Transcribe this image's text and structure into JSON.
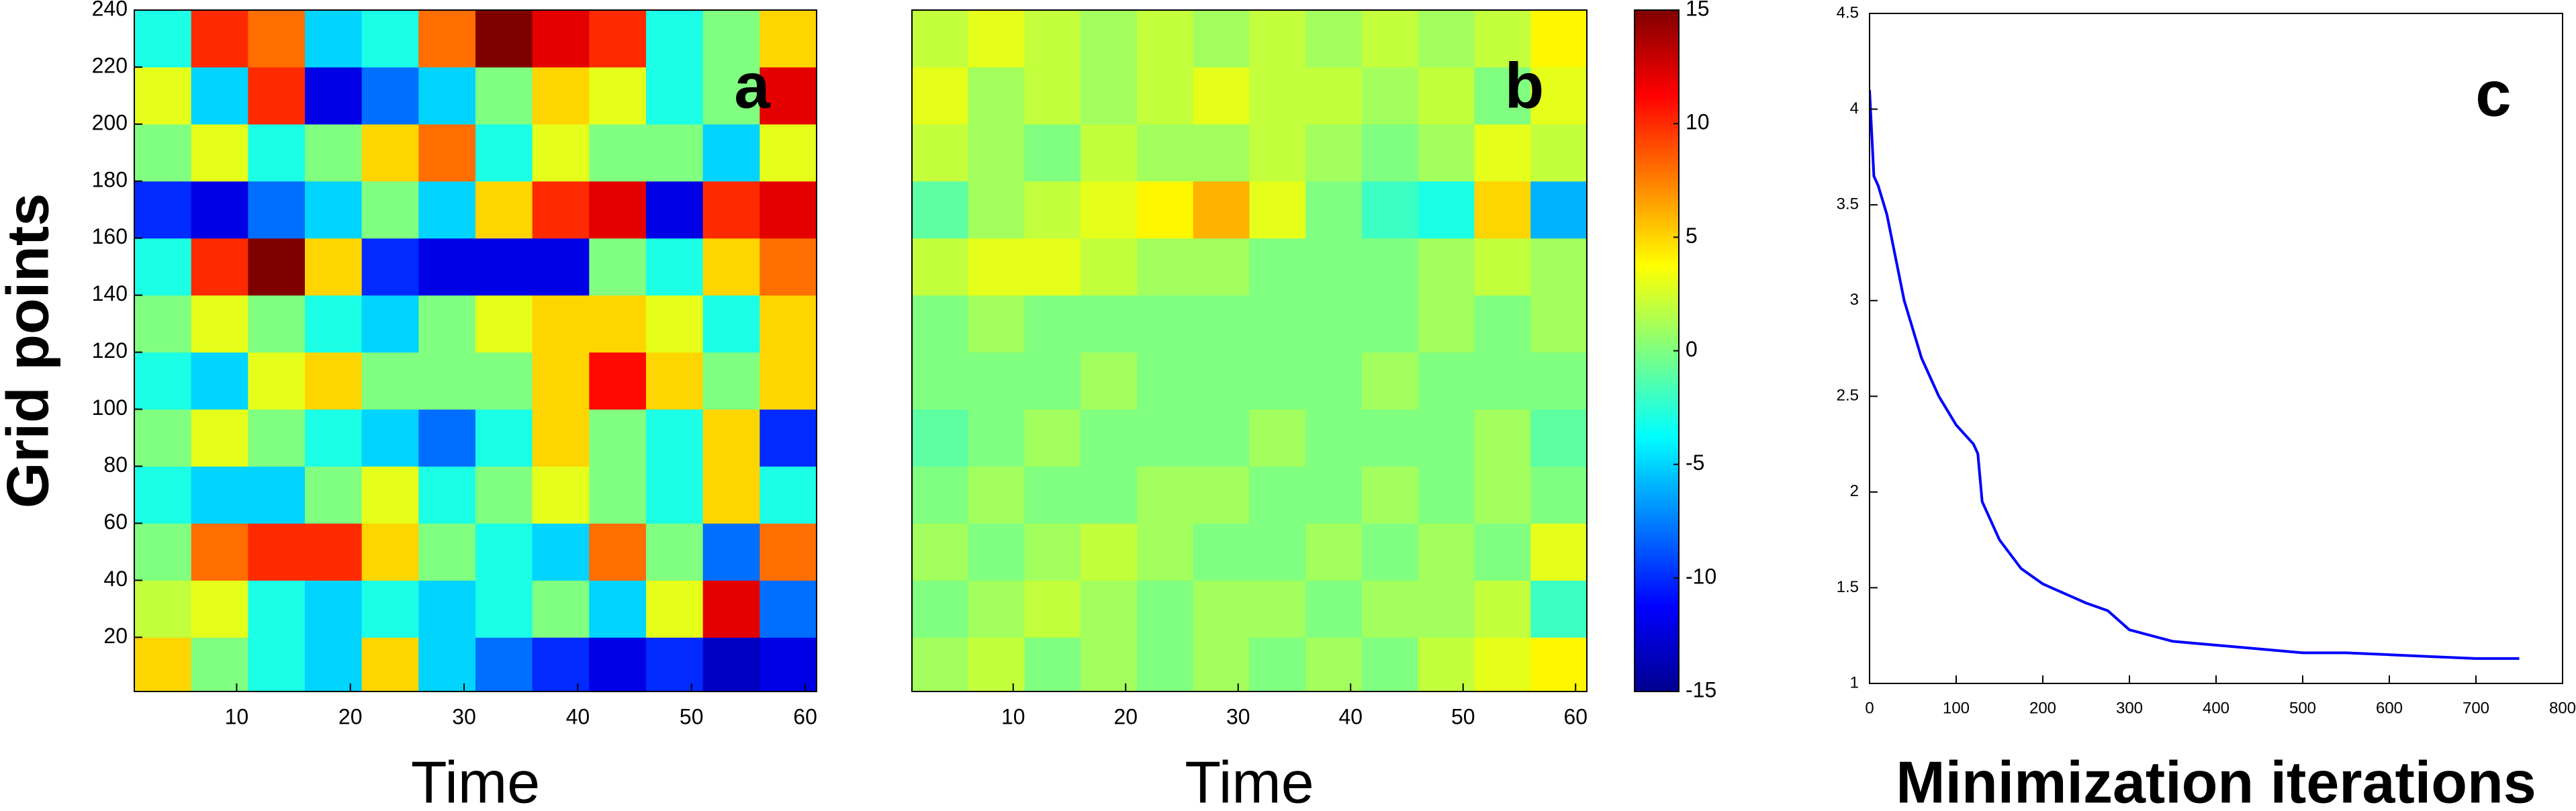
{
  "chart_data": [
    {
      "type": "heatmap",
      "label": "a",
      "ylabel": "Grid points",
      "xlabel": "Time",
      "xbins": [
        1,
        6,
        11,
        16,
        21,
        26,
        31,
        36,
        41,
        46,
        51,
        56,
        61
      ],
      "ybins": [
        0,
        20,
        40,
        60,
        80,
        100,
        120,
        140,
        160,
        180,
        200,
        220,
        240
      ],
      "xlim": [
        1,
        61
      ],
      "ylim": [
        1,
        240
      ],
      "xticks": [
        10,
        20,
        30,
        40,
        50,
        60
      ],
      "yticks": [
        20,
        40,
        60,
        80,
        100,
        120,
        140,
        160,
        180,
        200,
        220,
        240
      ],
      "clim": [
        -15,
        15
      ],
      "colormap": "jet",
      "values": [
        [
          5,
          0,
          -3,
          -5,
          5,
          -5,
          -8,
          -10,
          -12,
          -10,
          -13,
          -12
        ],
        [
          2,
          3,
          -3,
          -5,
          -3,
          -5,
          -3,
          0,
          -5,
          3,
          12,
          -8
        ],
        [
          0,
          8,
          10,
          10,
          5,
          0,
          -3,
          -5,
          8,
          0,
          -8,
          8
        ],
        [
          -3,
          -5,
          -5,
          0,
          3,
          -3,
          0,
          3,
          0,
          -3,
          5,
          -3
        ],
        [
          0,
          3,
          0,
          -3,
          -5,
          -8,
          -3,
          5,
          0,
          -3,
          5,
          -10
        ],
        [
          -3,
          -5,
          3,
          5,
          0,
          0,
          0,
          5,
          11,
          5,
          0,
          5
        ],
        [
          0,
          3,
          0,
          -3,
          -5,
          0,
          3,
          5,
          5,
          3,
          -3,
          5
        ],
        [
          -3,
          10,
          15,
          5,
          -10,
          -12,
          -12,
          -12,
          0,
          -3,
          5,
          8
        ],
        [
          -10,
          -12,
          -8,
          -5,
          0,
          -5,
          5,
          10,
          12,
          -12,
          10,
          12
        ],
        [
          0,
          3,
          -3,
          0,
          5,
          8,
          -3,
          3,
          0,
          0,
          -5,
          3
        ],
        [
          3,
          -5,
          10,
          -12,
          -8,
          -5,
          0,
          5,
          3,
          -3,
          0,
          12
        ],
        [
          -3,
          10,
          8,
          -5,
          -3,
          8,
          15,
          12,
          10,
          -3,
          0,
          5
        ]
      ]
    },
    {
      "type": "heatmap",
      "label": "b",
      "xlabel": "Time",
      "xbins": [
        1,
        6,
        11,
        16,
        21,
        26,
        31,
        36,
        41,
        46,
        51,
        56,
        61
      ],
      "ybins": [
        0,
        20,
        40,
        60,
        80,
        100,
        120,
        140,
        160,
        180,
        200,
        220,
        240
      ],
      "xlim": [
        1,
        61
      ],
      "ylim": [
        1,
        240
      ],
      "xticks": [
        10,
        20,
        30,
        40,
        50,
        60
      ],
      "yticks": [],
      "clim": [
        -15,
        15
      ],
      "colormap": "jet",
      "colorbar_ticks": [
        -15,
        -10,
        -5,
        0,
        5,
        10,
        15
      ],
      "values": [
        [
          1,
          2,
          0,
          1,
          0,
          1,
          0,
          1,
          0,
          2,
          3,
          4
        ],
        [
          0,
          1,
          2,
          1,
          0,
          1,
          1,
          0,
          1,
          1,
          2,
          -2
        ],
        [
          1,
          0,
          1,
          2,
          1,
          0,
          0,
          1,
          0,
          1,
          0,
          3
        ],
        [
          0,
          1,
          0,
          0,
          1,
          1,
          0,
          0,
          1,
          0,
          1,
          0
        ],
        [
          -1,
          0,
          1,
          0,
          0,
          0,
          1,
          0,
          0,
          0,
          1,
          -1
        ],
        [
          0,
          0,
          0,
          1,
          0,
          0,
          0,
          0,
          1,
          0,
          0,
          0
        ],
        [
          0,
          1,
          0,
          0,
          0,
          0,
          0,
          0,
          0,
          1,
          0,
          1
        ],
        [
          2,
          3,
          3,
          2,
          1,
          1,
          0,
          0,
          0,
          1,
          2,
          1
        ],
        [
          -1,
          1,
          2,
          3,
          4,
          6,
          3,
          0,
          -2,
          -3,
          5,
          -6
        ],
        [
          2,
          1,
          0,
          2,
          1,
          1,
          2,
          1,
          0,
          1,
          3,
          2
        ],
        [
          3,
          1,
          2,
          1,
          2,
          3,
          2,
          2,
          1,
          2,
          0,
          3
        ],
        [
          2,
          3,
          2,
          1,
          2,
          1,
          2,
          1,
          2,
          1,
          2,
          4
        ]
      ]
    },
    {
      "type": "line",
      "label": "c",
      "xlabel": "Minimization iterations",
      "color": "#0000ff",
      "xlim": [
        0,
        800
      ],
      "ylim": [
        1,
        4.5
      ],
      "xticks": [
        0,
        100,
        200,
        300,
        400,
        500,
        600,
        700,
        800
      ],
      "yticks": [
        1,
        1.5,
        2,
        2.5,
        3,
        3.5,
        4,
        4.5
      ],
      "x": [
        0,
        5,
        10,
        20,
        40,
        60,
        80,
        100,
        120,
        125,
        130,
        150,
        175,
        200,
        250,
        275,
        300,
        350,
        400,
        450,
        500,
        550,
        600,
        650,
        700,
        750
      ],
      "values": [
        4.1,
        3.65,
        3.6,
        3.45,
        3.0,
        2.7,
        2.5,
        2.35,
        2.25,
        2.2,
        1.95,
        1.75,
        1.6,
        1.52,
        1.42,
        1.38,
        1.28,
        1.22,
        1.2,
        1.18,
        1.16,
        1.16,
        1.15,
        1.14,
        1.13,
        1.13
      ]
    }
  ]
}
